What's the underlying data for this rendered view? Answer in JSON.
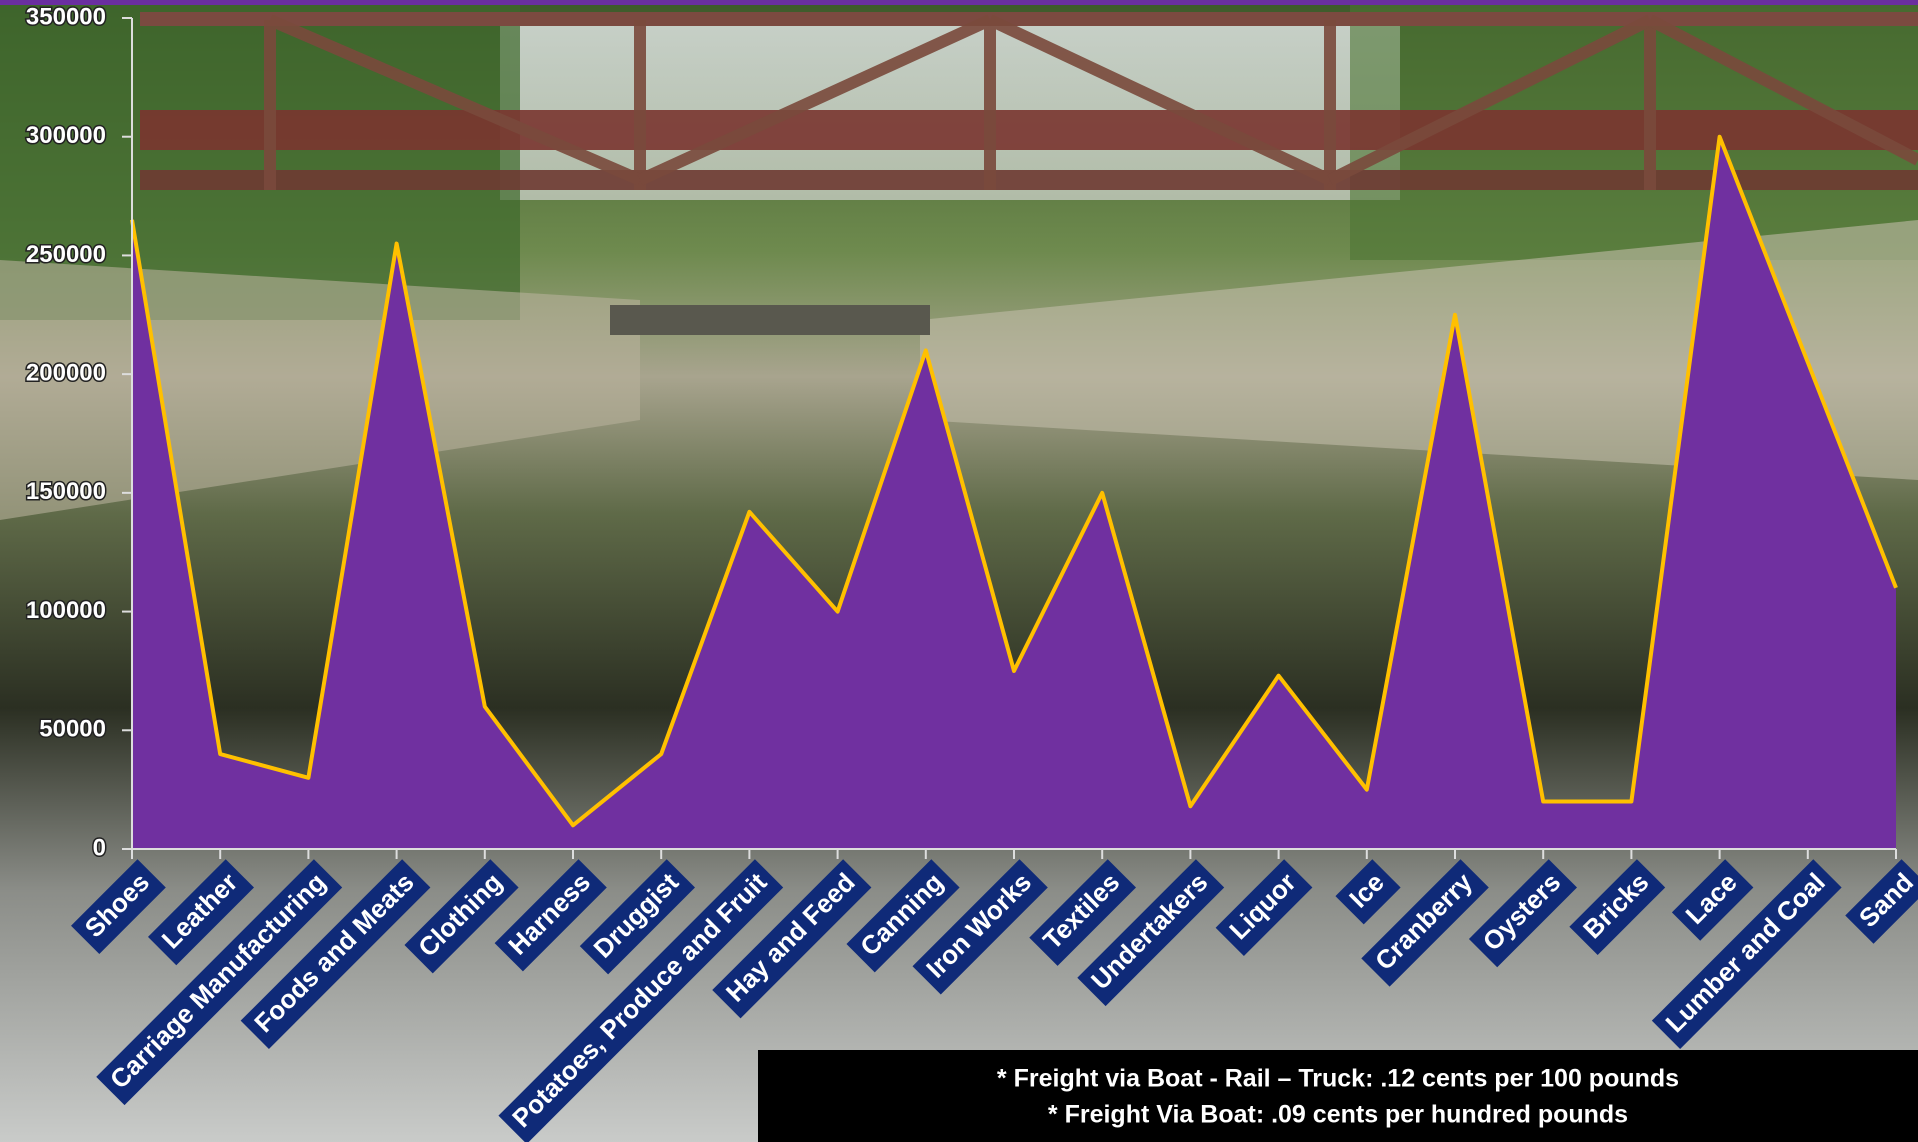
{
  "chart_data": {
    "type": "area",
    "categories": [
      "Shoes",
      "Leather",
      "Carriage Manufacturing",
      "Foods and Meats",
      "Clothing",
      "Harness",
      "Druggist",
      "Potatoes, Produce and Fruit",
      "Hay and Feed",
      "Canning",
      "Iron Works",
      "Textiles",
      "Undertakers",
      "Liquor",
      "Ice",
      "Cranberry",
      "Oysters",
      "Bricks",
      "Lace",
      "Lumber and Coal",
      "Sand"
    ],
    "values": [
      265000,
      40000,
      30000,
      255000,
      60000,
      10000,
      40000,
      142000,
      100000,
      210000,
      75000,
      150000,
      18000,
      73000,
      25000,
      225000,
      20000,
      20000,
      300000,
      205000,
      110000
    ],
    "color": "#7030a0",
    "line_color": "#ffc000",
    "label_box_color": "#0f2a78",
    "ylim": [
      0,
      350000
    ],
    "yticks": [
      0,
      50000,
      100000,
      150000,
      200000,
      250000,
      300000,
      350000
    ],
    "notes": [
      "*  Freight via Boat - Rail – Truck:  .12 cents per 100 pounds",
      "* Freight Via Boat:   .09 cents per hundred pounds"
    ]
  }
}
